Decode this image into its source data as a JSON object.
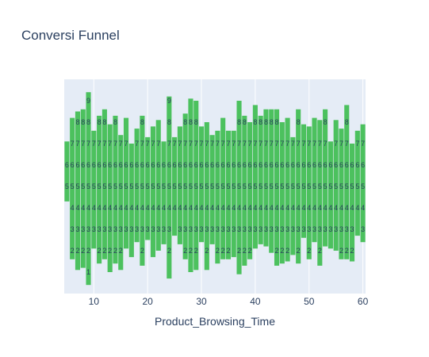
{
  "chart_data": {
    "type": "bar",
    "title": "Conversi Funnel",
    "xlabel": "Product_Browsing_Time",
    "ylabel": "",
    "bar_color": "#4cc15e",
    "background_color": "#e5ecf6",
    "title_color": "#2a3f5f",
    "grid": true,
    "legend": false,
    "xlim": [
      4.5,
      60.5
    ],
    "x_ticks": [
      10,
      20,
      30,
      40,
      50,
      60
    ],
    "x_tick_labels": [
      "10",
      "20",
      "30",
      "40",
      "50",
      "60"
    ],
    "x": [
      5,
      6,
      7,
      8,
      9,
      10,
      11,
      12,
      13,
      14,
      15,
      16,
      17,
      18,
      19,
      20,
      21,
      22,
      23,
      24,
      25,
      26,
      27,
      28,
      29,
      30,
      31,
      32,
      33,
      34,
      35,
      36,
      37,
      38,
      39,
      40,
      41,
      42,
      43,
      44,
      45,
      46,
      47,
      48,
      49,
      50,
      51,
      52,
      53,
      54,
      55,
      56,
      57,
      58,
      59,
      60
    ],
    "series": [
      {
        "bars": [
          {
            "low": 4.3,
            "high": 7.1
          },
          {
            "low": 1.6,
            "high": 8.2
          },
          {
            "low": 1.1,
            "high": 8.5
          },
          {
            "low": 1.2,
            "high": 8.6
          },
          {
            "low": 0.4,
            "high": 9.4
          },
          {
            "low": 2.1,
            "high": 7.6
          },
          {
            "low": 1.4,
            "high": 8.3
          },
          {
            "low": 1.6,
            "high": 8.6
          },
          {
            "low": 1.0,
            "high": 7.9
          },
          {
            "low": 1.4,
            "high": 8.3
          },
          {
            "low": 1.1,
            "high": 7.4
          },
          {
            "low": 2.1,
            "high": 8.2
          },
          {
            "low": 1.7,
            "high": 7.0
          },
          {
            "low": 2.4,
            "high": 7.7
          },
          {
            "low": 1.3,
            "high": 8.3
          },
          {
            "low": 2.5,
            "high": 7.3
          },
          {
            "low": 1.7,
            "high": 7.8
          },
          {
            "low": 2.0,
            "high": 8.1
          },
          {
            "low": 2.3,
            "high": 7.1
          },
          {
            "low": 0.7,
            "high": 9.2
          },
          {
            "low": 2.7,
            "high": 7.3
          },
          {
            "low": 2.3,
            "high": 7.8
          },
          {
            "low": 1.6,
            "high": 8.4
          },
          {
            "low": 1.0,
            "high": 9.1
          },
          {
            "low": 1.1,
            "high": 9.0
          },
          {
            "low": 2.4,
            "high": 7.8
          },
          {
            "low": 1.1,
            "high": 8.0
          },
          {
            "low": 2.3,
            "high": 7.4
          },
          {
            "low": 1.4,
            "high": 7.6
          },
          {
            "low": 1.6,
            "high": 8.2
          },
          {
            "low": 1.6,
            "high": 7.6
          },
          {
            "low": 1.7,
            "high": 7.6
          },
          {
            "low": 0.9,
            "high": 9.0
          },
          {
            "low": 1.3,
            "high": 8.3
          },
          {
            "low": 1.6,
            "high": 8.0
          },
          {
            "low": 2.1,
            "high": 8.8
          },
          {
            "low": 2.3,
            "high": 8.3
          },
          {
            "low": 2.2,
            "high": 8.6
          },
          {
            "low": 1.9,
            "high": 8.6
          },
          {
            "low": 1.3,
            "high": 8.6
          },
          {
            "low": 1.4,
            "high": 8.0
          },
          {
            "low": 1.5,
            "high": 8.2
          },
          {
            "low": 1.8,
            "high": 7.3
          },
          {
            "low": 1.4,
            "high": 8.6
          },
          {
            "low": 2.6,
            "high": 7.9
          },
          {
            "low": 1.6,
            "high": 7.8
          },
          {
            "low": 2.4,
            "high": 8.2
          },
          {
            "low": 1.3,
            "high": 8.1
          },
          {
            "low": 2.2,
            "high": 8.6
          },
          {
            "low": 2.1,
            "high": 7.1
          },
          {
            "low": 2.0,
            "high": 8.1
          },
          {
            "low": 1.6,
            "high": 7.7
          },
          {
            "low": 1.6,
            "high": 8.8
          },
          {
            "low": 1.5,
            "high": 7.0
          },
          {
            "low": 2.7,
            "high": 7.6
          },
          {
            "low": 2.4,
            "high": 7.9
          }
        ]
      }
    ]
  }
}
